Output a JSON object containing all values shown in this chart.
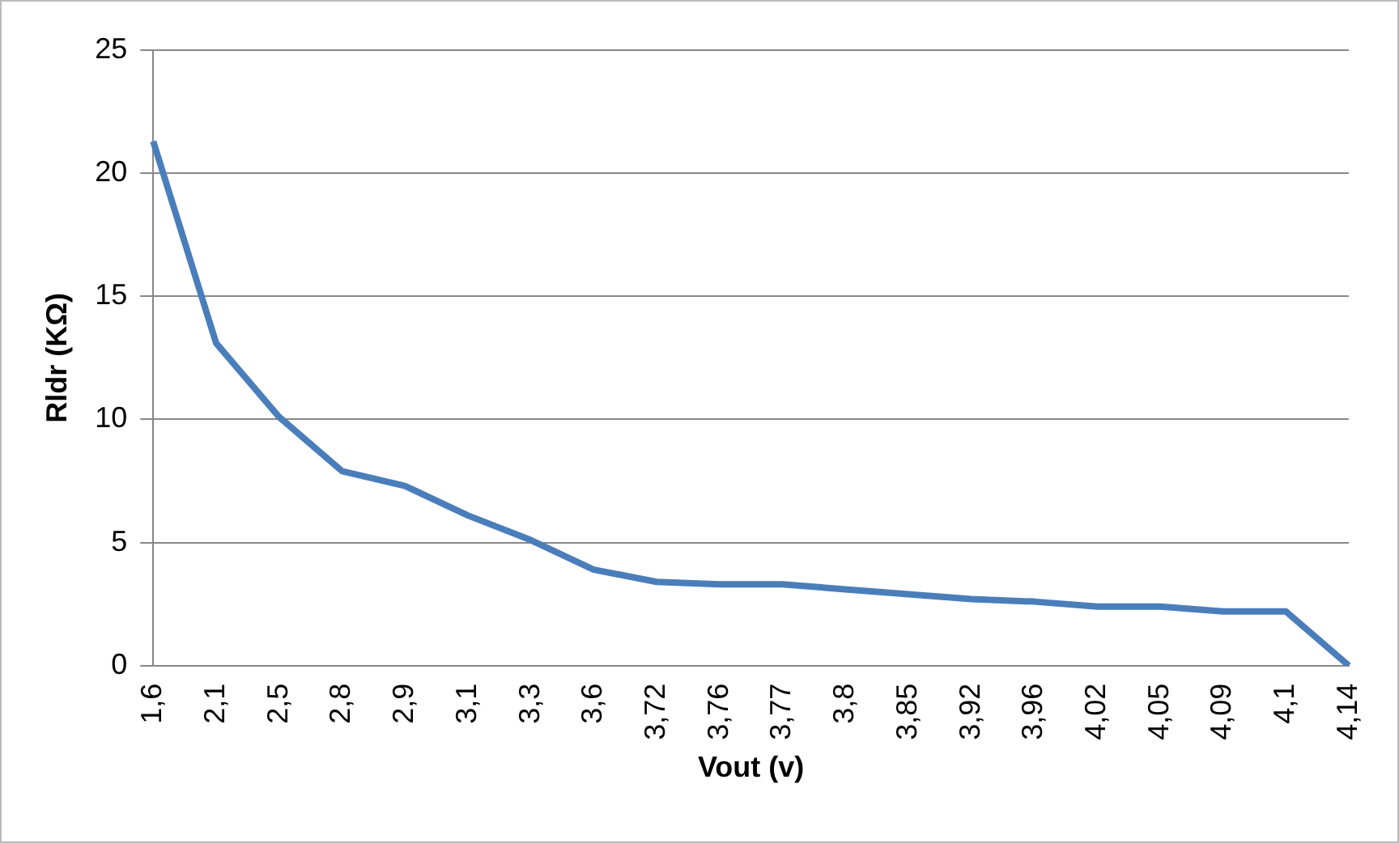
{
  "chart_data": {
    "type": "line",
    "xlabel": "Vout (v)",
    "ylabel": "Rldr (KΩ)",
    "categories": [
      "1,6",
      "2,1",
      "2,5",
      "2,8",
      "2,9",
      "3,1",
      "3,3",
      "3,6",
      "3,72",
      "3,76",
      "3,77",
      "3,8",
      "3,85",
      "3,92",
      "3,96",
      "4,02",
      "4,05",
      "4,09",
      "4,1",
      "4,14"
    ],
    "series": [
      {
        "color": "#4a7ebb",
        "values": [
          21.3,
          13.1,
          10.1,
          7.9,
          7.3,
          6.1,
          5.1,
          3.9,
          3.4,
          3.3,
          3.3,
          3.1,
          2.9,
          2.7,
          2.6,
          2.4,
          2.4,
          2.2,
          2.2,
          0
        ]
      }
    ],
    "ylim": [
      0,
      25
    ],
    "yticks": [
      0,
      5,
      10,
      15,
      20,
      25
    ],
    "grid": "y",
    "legend": false,
    "marker": "none",
    "line_style": "solid"
  }
}
